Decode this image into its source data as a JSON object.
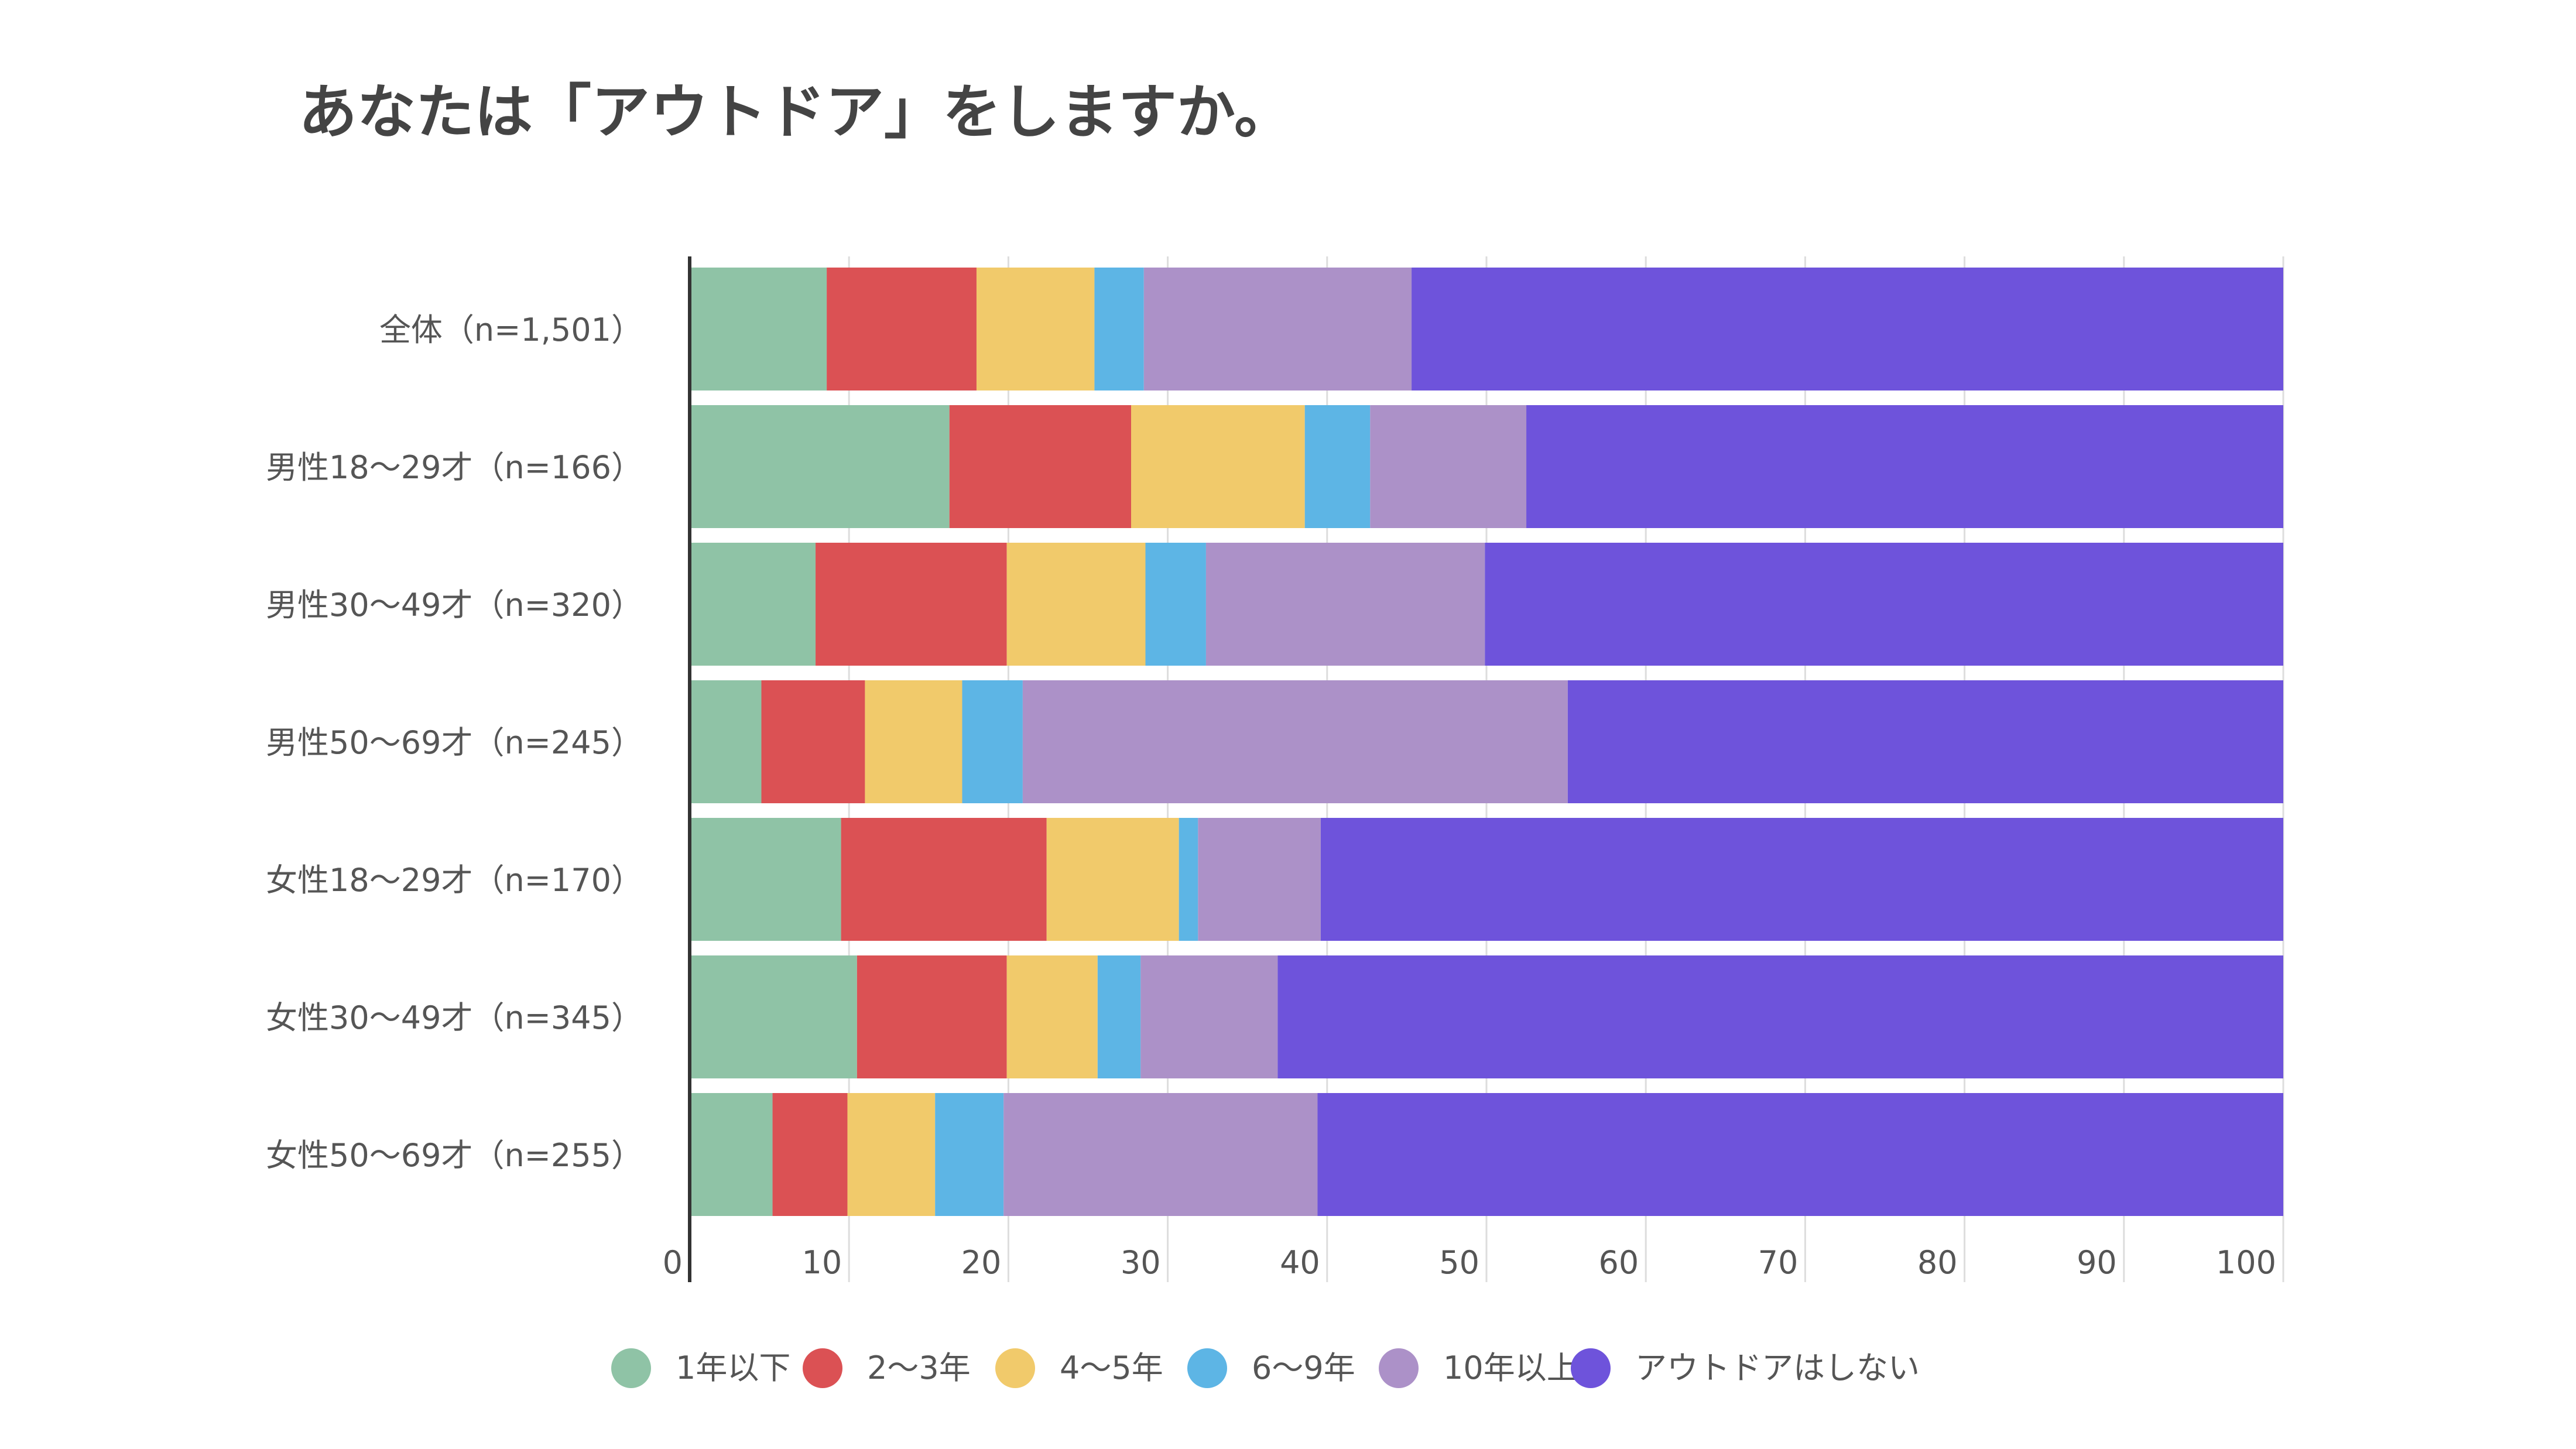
{
  "chart_data": {
    "type": "bar",
    "orientation": "horizontal",
    "stacked": true,
    "title": "あなたは「アウトドア」をしますか。",
    "categories": [
      "全体（n=1,501）",
      "男性18〜29才（n=166）",
      "男性30〜49才（n=320）",
      "男性50〜69才（n=245）",
      "女性18〜29才（n=170）",
      "女性30〜49才（n=345）",
      "女性50〜69才（n=255）"
    ],
    "series": [
      {
        "name": "1年以下",
        "color": "#8fc3a6",
        "values": [
          8.6,
          16.3,
          7.9,
          4.5,
          9.5,
          10.5,
          5.2
        ]
      },
      {
        "name": "2〜3年",
        "color": "#db5154",
        "values": [
          9.4,
          11.4,
          12.0,
          6.5,
          12.9,
          9.4,
          4.7
        ]
      },
      {
        "name": "4〜5年",
        "color": "#f1ca6b",
        "values": [
          7.4,
          10.9,
          8.7,
          6.1,
          8.3,
          5.7,
          5.5
        ]
      },
      {
        "name": "6〜9年",
        "color": "#5db5e5",
        "values": [
          3.1,
          4.1,
          3.8,
          3.8,
          1.2,
          2.7,
          4.3
        ]
      },
      {
        "name": "10年以上",
        "color": "#ac91c8",
        "values": [
          16.8,
          9.8,
          17.5,
          34.2,
          7.7,
          8.6,
          19.7
        ]
      },
      {
        "name": "アウトドアはしない",
        "color": "#6e53db",
        "values": [
          54.7,
          47.5,
          50.1,
          44.9,
          60.4,
          63.1,
          60.6
        ]
      }
    ],
    "xlim": [
      0,
      100
    ],
    "xticks": [
      0,
      10,
      20,
      30,
      40,
      50,
      60,
      70,
      80,
      90,
      100
    ],
    "grid": true,
    "legend_position": "bottom"
  }
}
